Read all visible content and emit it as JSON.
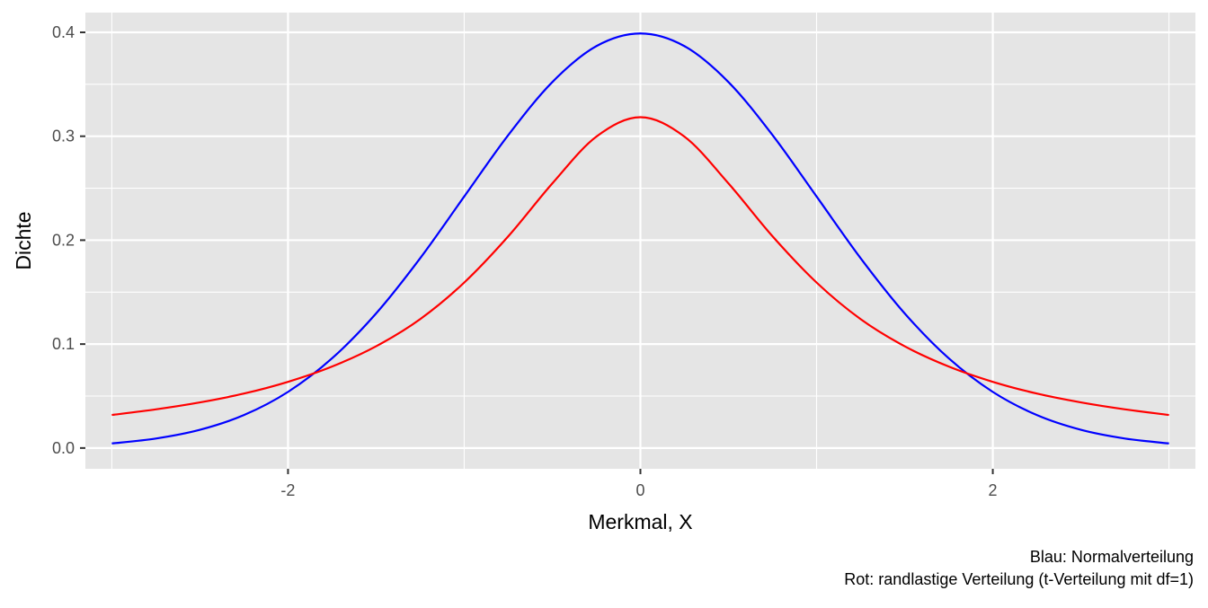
{
  "chart_data": {
    "type": "line",
    "title": "",
    "xlabel": "Merkmal, X",
    "ylabel": "Dichte",
    "xlim": [
      -3.15,
      3.15
    ],
    "ylim": [
      -0.02,
      0.419
    ],
    "x_ticks": [
      -2,
      0,
      2
    ],
    "x_tick_labels": [
      "-2",
      "0",
      "2"
    ],
    "x_minor_ticks": [
      -3,
      -1,
      1,
      3
    ],
    "y_ticks": [
      0.0,
      0.1,
      0.2,
      0.3,
      0.4
    ],
    "y_tick_labels": [
      "0.0",
      "0.1",
      "0.2",
      "0.3",
      "0.4"
    ],
    "grid": true,
    "background": "#e5e5e5",
    "grid_color": "#ffffff",
    "caption_lines": [
      "Blau: Normalverteilung",
      "Rot: randlastige Verteilung (t-Verteilung mit df=1)"
    ],
    "series": [
      {
        "color": "#0000ff",
        "x": [
          -3.0,
          -2.75,
          -2.5,
          -2.25,
          -2.0,
          -1.75,
          -1.5,
          -1.25,
          -1.0,
          -0.75,
          -0.5,
          -0.25,
          0.0,
          0.25,
          0.5,
          0.75,
          1.0,
          1.25,
          1.5,
          1.75,
          2.0,
          2.25,
          2.5,
          2.75,
          3.0
        ],
        "y": [
          0.0044,
          0.0091,
          0.0175,
          0.0317,
          0.054,
          0.0863,
          0.1295,
          0.1826,
          0.242,
          0.3011,
          0.3521,
          0.3867,
          0.3989,
          0.3867,
          0.3521,
          0.3011,
          0.242,
          0.1826,
          0.1295,
          0.0863,
          0.054,
          0.0317,
          0.0175,
          0.0091,
          0.0044
        ]
      },
      {
        "color": "#ff0000",
        "x": [
          -3.0,
          -2.75,
          -2.5,
          -2.25,
          -2.0,
          -1.75,
          -1.5,
          -1.25,
          -1.0,
          -0.75,
          -0.5,
          -0.25,
          0.0,
          0.25,
          0.5,
          0.75,
          1.0,
          1.25,
          1.5,
          1.75,
          2.0,
          2.25,
          2.5,
          2.75,
          3.0
        ],
        "y": [
          0.0318,
          0.0372,
          0.0439,
          0.0524,
          0.0637,
          0.0784,
          0.0979,
          0.124,
          0.1592,
          0.2037,
          0.2546,
          0.2996,
          0.3183,
          0.2996,
          0.2546,
          0.2037,
          0.1592,
          0.124,
          0.0979,
          0.0784,
          0.0637,
          0.0524,
          0.0439,
          0.0372,
          0.0318
        ]
      }
    ]
  }
}
